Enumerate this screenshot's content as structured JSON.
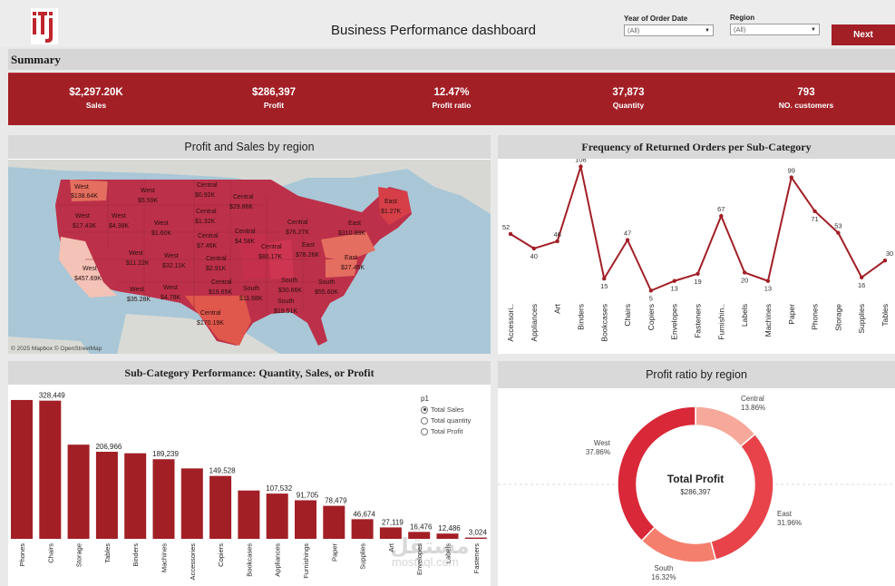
{
  "header": {
    "title": "Business Performance dashboard",
    "logo_text": "itj",
    "filters": [
      {
        "label": "Year of Order Date",
        "value": "(All)"
      },
      {
        "label": "Region",
        "value": "(All)"
      }
    ],
    "next_label": "Next"
  },
  "summary": {
    "title": "Summary",
    "kpis": [
      {
        "value": "$2,297.20K",
        "label": "Sales"
      },
      {
        "value": "$286,397",
        "label": "Profit"
      },
      {
        "value": "12.47%",
        "label": "Profit ratio"
      },
      {
        "value": "37,873",
        "label": "Quantity"
      },
      {
        "value": "793",
        "label": "NO. customers"
      }
    ]
  },
  "map": {
    "title": "Profit and Sales by region",
    "attribution": "© 2025 Mapbox  © OpenStreetMap",
    "labels": [
      {
        "region": "West",
        "value": "$138.64K"
      },
      {
        "region": "West",
        "value": "$5.59K"
      },
      {
        "region": "Central",
        "value": "$0.92K"
      },
      {
        "region": "Central",
        "value": "$29.86K"
      },
      {
        "region": "West",
        "value": "$17.43K"
      },
      {
        "region": "West",
        "value": "$4.38K"
      },
      {
        "region": "West",
        "value": "$1.60K"
      },
      {
        "region": "Central",
        "value": "$1.32K"
      },
      {
        "region": "Central",
        "value": "$7.46K"
      },
      {
        "region": "Central",
        "value": "$4.58K"
      },
      {
        "region": "Central",
        "value": "$76.27K"
      },
      {
        "region": "Central",
        "value": "$80.17K"
      },
      {
        "region": "East",
        "value": "$310.88K"
      },
      {
        "region": "East",
        "value": "$1.27K"
      },
      {
        "region": "East",
        "value": "$78.26K"
      },
      {
        "region": "East",
        "value": "$27.45K"
      },
      {
        "region": "West",
        "value": "$11.22K"
      },
      {
        "region": "West",
        "value": "$32.11K"
      },
      {
        "region": "Central",
        "value": "$2.91K"
      },
      {
        "region": "West",
        "value": "$457.69K"
      },
      {
        "region": "West",
        "value": "$35.28K"
      },
      {
        "region": "West",
        "value": "$4.78K"
      },
      {
        "region": "Central",
        "value": "$19.65K"
      },
      {
        "region": "South",
        "value": "$11.68K"
      },
      {
        "region": "South",
        "value": "$30.66K"
      },
      {
        "region": "South",
        "value": "$55.60K"
      },
      {
        "region": "South",
        "value": "$19.51K"
      },
      {
        "region": "Central",
        "value": "$170.19K"
      }
    ]
  },
  "returns_chart": {
    "title": "Frequency of Returned Orders per Sub-Category",
    "chart_data": {
      "type": "line",
      "categories": [
        "Accessori..",
        "Appliances",
        "Art",
        "Binders",
        "Bookcases",
        "Chairs",
        "Copiers",
        "Envelopes",
        "Fasteners",
        "Furnishin..",
        "Labels",
        "Machines",
        "Paper",
        "Phones",
        "Storage",
        "Supplies",
        "Tables"
      ],
      "values": [
        52,
        40,
        46,
        108,
        15,
        47,
        5,
        13,
        19,
        67,
        20,
        13,
        99,
        71,
        53,
        16,
        30
      ],
      "value_labels": [
        "52",
        "40",
        "46",
        "108",
        "15",
        "47",
        "5",
        "13",
        "19",
        "67",
        "20",
        "13",
        "99",
        "71",
        "53",
        "16",
        "30"
      ],
      "color": "#a21f26"
    }
  },
  "subcategory_chart": {
    "title": "Sub-Category Performance: Quantity, Sales, or Profit",
    "param_title": "p1",
    "options": [
      {
        "label": "Total Sales",
        "selected": true
      },
      {
        "label": "Total quantity",
        "selected": false
      },
      {
        "label": "Total Profit",
        "selected": false
      }
    ],
    "chart_data": {
      "type": "bar",
      "categories": [
        "Phones",
        "Chairs",
        "Storage",
        "Tables",
        "Binders",
        "Machines",
        "Accessories",
        "Copiers",
        "Bookcases",
        "Appliances",
        "Furnishings",
        "Paper",
        "Supplies",
        "Art",
        "Envelopes",
        "Labels",
        "Fasteners"
      ],
      "values": [
        330007,
        328449,
        223844,
        206966,
        203413,
        189239,
        167380,
        149528,
        114880,
        107532,
        91705,
        78479,
        46674,
        27119,
        16476,
        12486,
        3024
      ],
      "value_labels": [
        "",
        "328,449",
        "",
        "206,966",
        "",
        "189,239",
        "",
        "149,528",
        "",
        "107,532",
        "91,705",
        "78,479",
        "46,674",
        "27,119",
        "16,476",
        "12,486",
        "3,024"
      ],
      "color": "#a21f26"
    }
  },
  "ratio_chart": {
    "title": "Profit ratio by region",
    "center_title": "Total Profit",
    "center_value": "$286,397",
    "chart_data": {
      "type": "pie",
      "categories": [
        "Central",
        "East",
        "South",
        "West"
      ],
      "values": [
        13.86,
        31.96,
        16.32,
        37.86
      ],
      "value_labels": [
        "13.86%",
        "31.96%",
        "16.32%",
        "37.86%"
      ],
      "colors": [
        "#f6a89a",
        "#e8434a",
        "#f57f6d",
        "#d92838"
      ]
    }
  },
  "watermark": {
    "brand": "مستقل",
    "site": "mostaql.com"
  }
}
